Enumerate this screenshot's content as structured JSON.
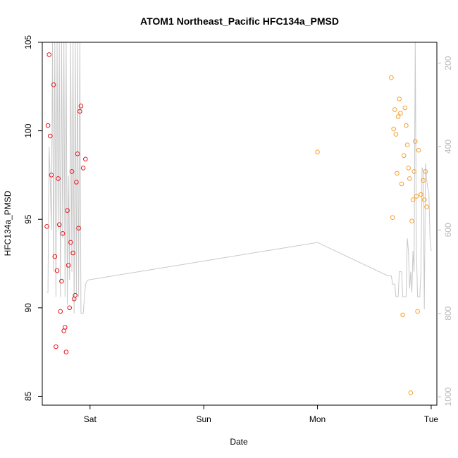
{
  "chart_data": {
    "type": "scatter",
    "title": "ATOM1 Northeast_Pacific HFC134a_PMSD",
    "xlabel": "Date",
    "ylabel": "HFC134a_PMSD",
    "xlim": [
      -0.42,
      3.05
    ],
    "ylim": [
      84.5,
      105.0
    ],
    "x_ticks": [
      {
        "value": 0,
        "label": "Sat"
      },
      {
        "value": 1,
        "label": "Sun"
      },
      {
        "value": 2,
        "label": "Mon"
      },
      {
        "value": 3,
        "label": "Tue"
      }
    ],
    "y_ticks": [
      85,
      90,
      95,
      100,
      105
    ],
    "y2_ticks": [
      200,
      400,
      600,
      800,
      1000
    ],
    "y2lim": [
      150,
      1020
    ],
    "grid": false,
    "colors": {
      "series_red": "#e8141c",
      "series_orange": "#f5a030",
      "line_grey": "#c8c8c8",
      "axis": "#000000",
      "right_axis": "#bbbbbb"
    },
    "series": [
      {
        "color": "#e8141c",
        "marker": "open-circle",
        "points": [
          [
            -0.38,
            94.6
          ],
          [
            -0.37,
            100.3
          ],
          [
            -0.36,
            104.3
          ],
          [
            -0.35,
            99.7
          ],
          [
            -0.34,
            97.5
          ],
          [
            -0.32,
            102.6
          ],
          [
            -0.31,
            92.9
          ],
          [
            -0.3,
            87.8
          ],
          [
            -0.29,
            92.1
          ],
          [
            -0.28,
            97.3
          ],
          [
            -0.27,
            94.7
          ],
          [
            -0.26,
            89.8
          ],
          [
            -0.25,
            91.5
          ],
          [
            -0.24,
            94.2
          ],
          [
            -0.23,
            88.7
          ],
          [
            -0.22,
            88.9
          ],
          [
            -0.21,
            87.5
          ],
          [
            -0.2,
            95.5
          ],
          [
            -0.19,
            92.4
          ],
          [
            -0.18,
            90.0
          ],
          [
            -0.17,
            93.7
          ],
          [
            -0.16,
            97.7
          ],
          [
            -0.15,
            93.1
          ],
          [
            -0.14,
            90.5
          ],
          [
            -0.13,
            90.7
          ],
          [
            -0.12,
            97.1
          ],
          [
            -0.11,
            98.7
          ],
          [
            -0.1,
            94.5
          ],
          [
            -0.09,
            101.1
          ],
          [
            -0.08,
            101.4
          ],
          [
            -0.06,
            97.9
          ],
          [
            -0.04,
            98.4
          ]
        ]
      },
      {
        "color": "#f5a030",
        "marker": "open-circle",
        "points": [
          [
            2.0,
            98.8
          ],
          [
            2.65,
            103.0
          ],
          [
            2.66,
            95.1
          ],
          [
            2.67,
            100.1
          ],
          [
            2.68,
            101.2
          ],
          [
            2.69,
            99.8
          ],
          [
            2.7,
            97.6
          ],
          [
            2.71,
            100.8
          ],
          [
            2.72,
            101.8
          ],
          [
            2.73,
            101.0
          ],
          [
            2.74,
            97.0
          ],
          [
            2.75,
            89.6
          ],
          [
            2.76,
            98.6
          ],
          [
            2.77,
            101.3
          ],
          [
            2.78,
            100.3
          ],
          [
            2.79,
            99.2
          ],
          [
            2.8,
            97.9
          ],
          [
            2.81,
            97.3
          ],
          [
            2.82,
            85.2
          ],
          [
            2.83,
            94.9
          ],
          [
            2.84,
            96.1
          ],
          [
            2.85,
            97.7
          ],
          [
            2.86,
            99.4
          ],
          [
            2.87,
            96.3
          ],
          [
            2.88,
            89.8
          ],
          [
            2.89,
            98.9
          ],
          [
            2.91,
            96.4
          ],
          [
            2.93,
            97.2
          ],
          [
            2.94,
            96.1
          ],
          [
            2.95,
            97.7
          ],
          [
            2.96,
            95.7
          ]
        ]
      }
    ],
    "secondary_line": {
      "color": "#c8c8c8",
      "axis": "right",
      "points": [
        [
          -0.38,
          750
        ],
        [
          -0.37,
          750
        ],
        [
          -0.36,
          400
        ],
        [
          -0.35,
          480
        ],
        [
          -0.34,
          600
        ],
        [
          -0.33,
          150
        ],
        [
          -0.32,
          700
        ],
        [
          -0.31,
          150
        ],
        [
          -0.3,
          760
        ],
        [
          -0.29,
          150
        ],
        [
          -0.28,
          600
        ],
        [
          -0.27,
          150
        ],
        [
          -0.26,
          760
        ],
        [
          -0.25,
          150
        ],
        [
          -0.24,
          620
        ],
        [
          -0.23,
          150
        ],
        [
          -0.22,
          760
        ],
        [
          -0.21,
          150
        ],
        [
          -0.2,
          780
        ],
        [
          -0.19,
          470
        ],
        [
          -0.18,
          720
        ],
        [
          -0.17,
          150
        ],
        [
          -0.16,
          700
        ],
        [
          -0.15,
          150
        ],
        [
          -0.14,
          800
        ],
        [
          -0.13,
          150
        ],
        [
          -0.12,
          760
        ],
        [
          -0.11,
          150
        ],
        [
          -0.1,
          760
        ],
        [
          -0.09,
          150
        ],
        [
          -0.08,
          800
        ],
        [
          -0.06,
          800
        ],
        [
          -0.04,
          730
        ],
        [
          -0.02,
          720
        ],
        [
          2.0,
          630
        ],
        [
          2.62,
          710
        ],
        [
          2.65,
          710
        ],
        [
          2.66,
          730
        ],
        [
          2.68,
          730
        ],
        [
          2.69,
          760
        ],
        [
          2.71,
          760
        ],
        [
          2.72,
          700
        ],
        [
          2.74,
          700
        ],
        [
          2.75,
          760
        ],
        [
          2.78,
          760
        ],
        [
          2.79,
          620
        ],
        [
          2.8,
          650
        ],
        [
          2.81,
          740
        ],
        [
          2.82,
          700
        ],
        [
          2.83,
          750
        ],
        [
          2.84,
          650
        ],
        [
          2.85,
          700
        ],
        [
          2.86,
          150
        ],
        [
          2.87,
          650
        ],
        [
          2.88,
          760
        ],
        [
          2.9,
          760
        ],
        [
          2.91,
          700
        ],
        [
          2.92,
          450
        ],
        [
          2.93,
          460
        ],
        [
          2.94,
          790
        ],
        [
          2.95,
          440
        ],
        [
          2.96,
          480
        ],
        [
          2.97,
          500
        ],
        [
          2.98,
          510
        ],
        [
          2.99,
          620
        ],
        [
          3.0,
          650
        ]
      ]
    }
  }
}
